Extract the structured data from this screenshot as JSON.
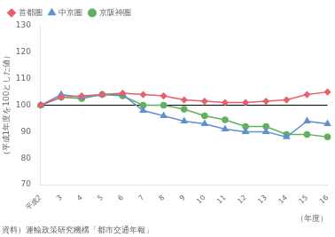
{
  "chart_data": {
    "type": "line",
    "categories": [
      "平成2",
      "3",
      "4",
      "5",
      "6",
      "7",
      "8",
      "9",
      "10",
      "11",
      "12",
      "13",
      "14",
      "15",
      "16"
    ],
    "series": [
      {
        "name": "首都圏",
        "color": "#e8606a",
        "marker": "diamond",
        "values": [
          100,
          103,
          103.5,
          104,
          104.5,
          104,
          103.5,
          102,
          101.5,
          101,
          101,
          101.5,
          102,
          104,
          105
        ]
      },
      {
        "name": "中京圏",
        "color": "#6090d0",
        "marker": "triangle",
        "values": [
          100,
          104,
          103,
          104,
          104,
          98,
          96,
          94,
          93,
          91,
          90,
          90,
          88,
          94,
          93
        ]
      },
      {
        "name": "京阪神圏",
        "color": "#60b060",
        "marker": "circle",
        "values": [
          100,
          103,
          102.5,
          104,
          103.5,
          100,
          100,
          98.5,
          96,
          94.5,
          92,
          92,
          89,
          89,
          88
        ]
      }
    ],
    "ylim": [
      70,
      130
    ],
    "yticks": [
      70,
      80,
      90,
      100,
      110,
      120,
      130
    ],
    "grid": false,
    "legend": "upper left",
    "ylabel": "（平成1年度を100とした値）",
    "xlabel": "（年度）",
    "source": "資料）運輸政策研究機構「都市交通年報」",
    "hline": 100
  }
}
